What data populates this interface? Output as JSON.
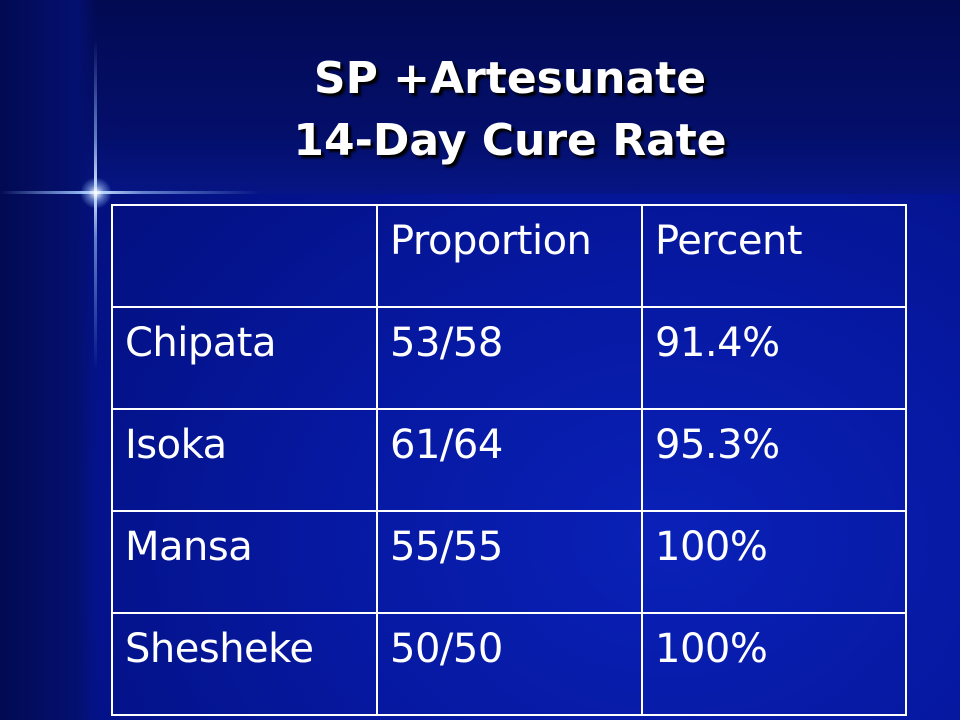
{
  "slide": {
    "title_line1": "SP +Artesunate",
    "title_line2": "14-Day Cure Rate"
  },
  "table": {
    "headers": [
      "",
      "Proportion",
      "Percent"
    ],
    "rows": [
      {
        "site": "Chipata",
        "proportion": "53/58",
        "percent": "91.4%"
      },
      {
        "site": "Isoka",
        "proportion": "61/64",
        "percent": "95.3%"
      },
      {
        "site": "Mansa",
        "proportion": "55/55",
        "percent": "100%"
      },
      {
        "site": "Shesheke",
        "proportion": "50/50",
        "percent": "100%"
      }
    ]
  },
  "colors": {
    "background": "#0618a0",
    "text": "#ffffff",
    "border": "#ffffff"
  }
}
